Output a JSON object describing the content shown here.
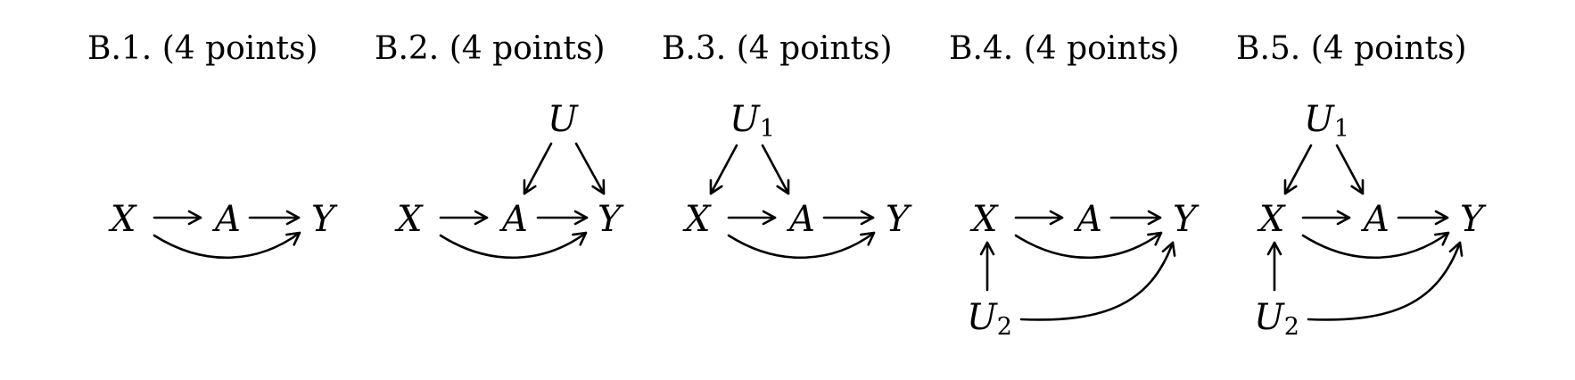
{
  "panels": [
    {
      "title": "B.1.  (4 points)",
      "nodes": {
        "X": "X",
        "A": "A",
        "Y": "Y"
      }
    },
    {
      "title": "B.2.  (4 points)",
      "nodes": {
        "X": "X",
        "A": "A",
        "Y": "Y",
        "U": "U"
      }
    },
    {
      "title": "B.3.  (4 points)",
      "nodes": {
        "X": "X",
        "A": "A",
        "Y": "Y",
        "U1": "U",
        "U1_sub": "1"
      }
    },
    {
      "title": "B.4.  (4 points)",
      "nodes": {
        "X": "X",
        "A": "A",
        "Y": "Y",
        "U2": "U",
        "U2_sub": "2"
      }
    },
    {
      "title": "B.5.  (4 points)",
      "nodes": {
        "X": "X",
        "A": "A",
        "Y": "Y",
        "U1": "U",
        "U1_sub": "1",
        "U2": "U",
        "U2_sub": "2"
      }
    }
  ],
  "colors": {
    "ink": "#000000",
    "background": "#ffffff"
  }
}
